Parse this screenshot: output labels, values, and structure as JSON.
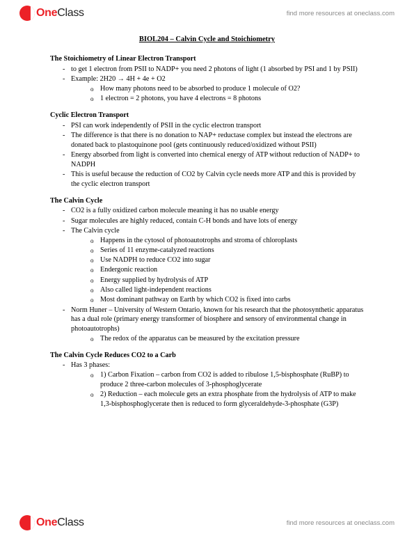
{
  "brand": {
    "one": "One",
    "class": "Class",
    "tagline": "find more resources at oneclass.com"
  },
  "doc": {
    "title": "BIOL204 – Calvin Cycle and Stoichiometry"
  },
  "s1": {
    "heading": "The Stoichiometry of Linear Electron Transport",
    "b1": "to get 1 electron from PSII to NADP+ you need 2 photons of light (1 absorbed by PSI and 1 by PSII)",
    "b2": "Example: 2H20 → 4H + 4e + O2",
    "b2a": "How many photons need to be absorbed to produce 1 molecule of O2?",
    "b2b": "1 electron = 2 photons, you have 4 electrons = 8 photons"
  },
  "s2": {
    "heading": "Cyclic Electron Transport",
    "b1": "PSI can work independently of PSII in the cyclic electron transport",
    "b2": "The difference is that there is no donation to NAP+ reductase complex but instead the electrons are donated back to plastoquinone pool (gets continuously reduced/oxidized without PSII)",
    "b3": "Energy absorbed from light is converted into chemical energy of ATP without reduction of NADP+ to NADPH",
    "b4": "This is useful because the reduction of CO2 by Calvin cycle needs more ATP and this is provided by the cyclic electron transport"
  },
  "s3": {
    "heading": "The Calvin Cycle",
    "b1": "CO2 is a fully oxidized carbon molecule meaning it has no usable energy",
    "b2": "Sugar molecules are highly reduced, contain C-H bonds and have lots of energy",
    "b3": "The Calvin cycle",
    "b3a": "Happens in the cytosol of photoautotrophs and stroma of chloroplasts",
    "b3b": "Series of 11 enzyme-catalyzed reactions",
    "b3c": "Use NADPH to reduce CO2 into sugar",
    "b3d": "Endergonic reaction",
    "b3e": "Energy supplied by hydrolysis of ATP",
    "b3f": "Also called light-independent reactions",
    "b3g": "Most dominant pathway on Earth by which CO2 is fixed into carbs",
    "b4": "Norm Huner – University of Western Ontario, known for his research that the photosynthetic apparatus has a dual role (primary energy transformer of biosphere and sensory of environmental change in photoautotrophs)",
    "b4a": "The redox of the apparatus can be measured by the excitation pressure"
  },
  "s4": {
    "heading": "The Calvin Cycle Reduces CO2 to a Carb",
    "b1": "Has 3 phases:",
    "b1a": "1) Carbon Fixation – carbon from CO2 is added to ribulose 1,5-bisphosphate (RuBP) to produce 2 three-carbon molecules of 3-phosphoglycerate",
    "b1b": "2) Reduction – each molecule gets an extra phosphate from the hydrolysis of ATP to make 1,3-bisphosphoglycerate then is reduced to form glyceraldehyde-3-phosphate (G3P)"
  }
}
